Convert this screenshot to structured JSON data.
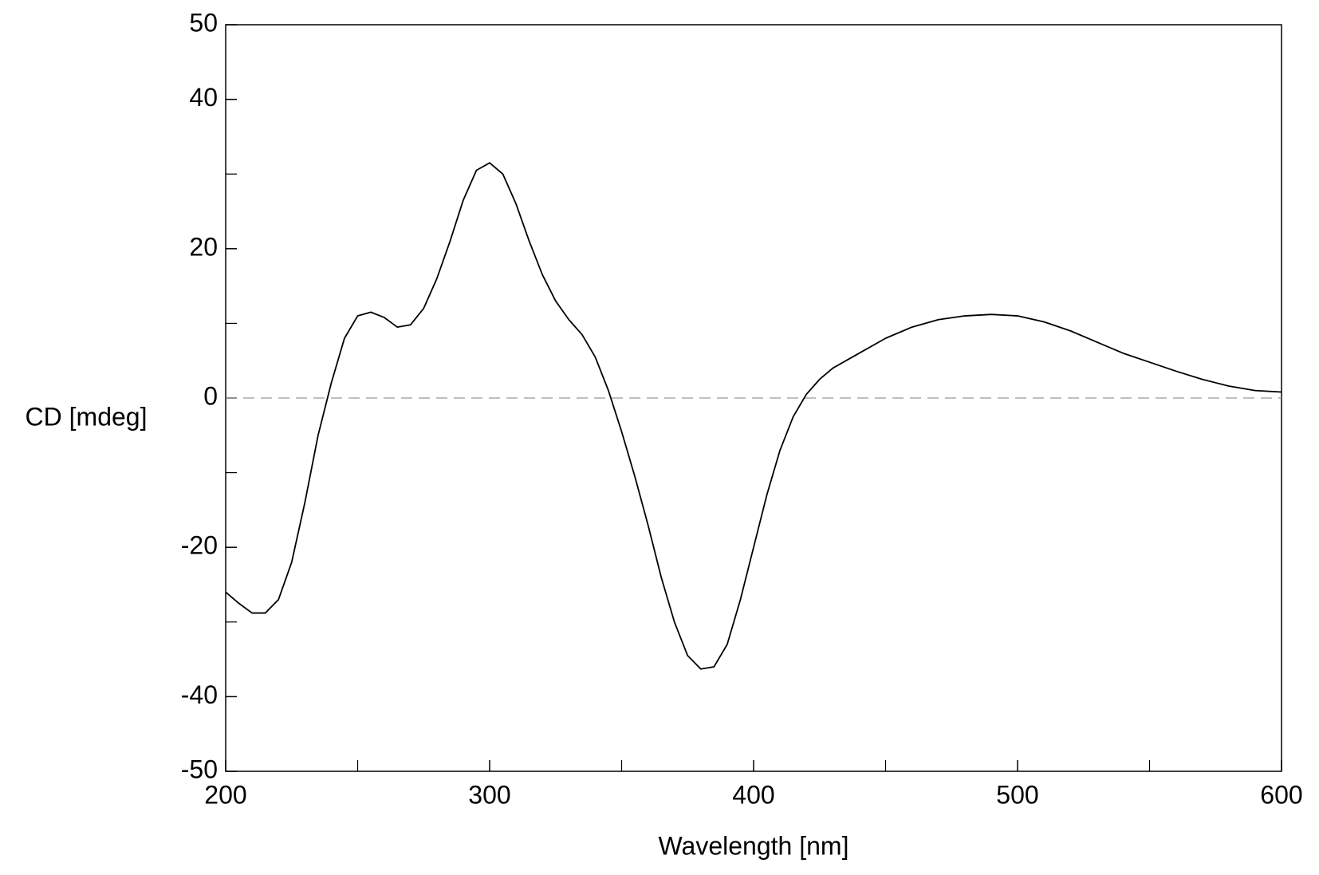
{
  "chart_data": {
    "type": "line",
    "x_label": "Wavelength [nm]",
    "y_label": "CD [mdeg]",
    "x": [
      200,
      205,
      210,
      215,
      220,
      225,
      230,
      235,
      240,
      245,
      250,
      255,
      260,
      265,
      270,
      275,
      280,
      285,
      290,
      295,
      300,
      305,
      310,
      315,
      320,
      325,
      330,
      335,
      340,
      345,
      350,
      355,
      360,
      365,
      370,
      375,
      380,
      385,
      390,
      395,
      400,
      405,
      410,
      415,
      420,
      425,
      430,
      440,
      450,
      460,
      470,
      480,
      490,
      500,
      510,
      520,
      530,
      540,
      550,
      560,
      570,
      580,
      590,
      600
    ],
    "series": [
      {
        "color": "#000000",
        "values": [
          -26,
          -27.5,
          -28.8,
          -28.8,
          -27,
          -22,
          -14,
          -5,
          2,
          8,
          11,
          11.5,
          10.8,
          9.5,
          9.8,
          12,
          16,
          21,
          26.5,
          30.5,
          31.5,
          30,
          26,
          21,
          16.5,
          13,
          10.5,
          8.5,
          5.5,
          1,
          -4.5,
          -10.5,
          -17,
          -24,
          -30,
          -34.5,
          -36.3,
          -36,
          -33,
          -27,
          -20,
          -13,
          -7,
          -2.5,
          0.5,
          2.5,
          4,
          6,
          8,
          9.5,
          10.5,
          11,
          11.2,
          11,
          10.2,
          9,
          7.5,
          6,
          4.8,
          3.6,
          2.5,
          1.6,
          1,
          0.8
        ]
      }
    ],
    "xlim": [
      200,
      600
    ],
    "xticks": [
      200,
      300,
      400,
      500,
      600
    ],
    "x_minor_ticks": [
      250,
      350,
      450,
      550
    ],
    "ylim": [
      -50,
      50
    ],
    "yticks": [
      -50,
      -40,
      -20,
      0,
      20,
      40,
      50
    ],
    "y_minor_ticks": [
      -30,
      -10,
      10,
      30
    ],
    "zero_line": true
  }
}
